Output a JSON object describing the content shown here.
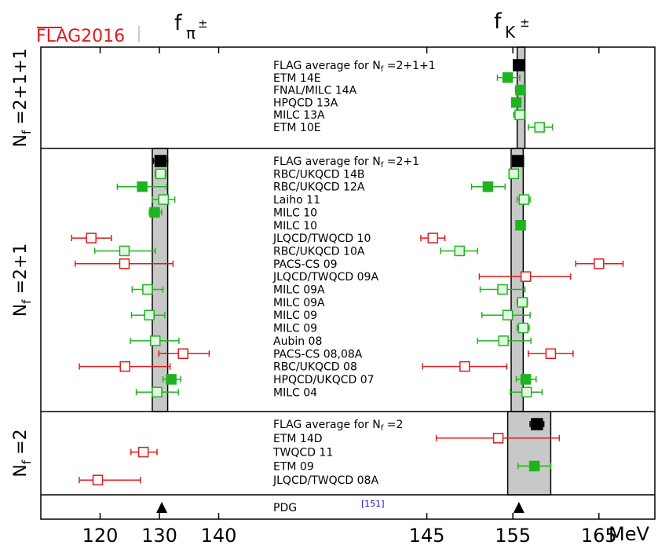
{
  "logo_text": "FLAG2016",
  "chart_data": {
    "type": "scatter",
    "unit": "MeV",
    "left_panel": {
      "quantity": "f_π±",
      "title_main": "f",
      "title_sub": "π",
      "title_sup": "±",
      "xlim": [
        110,
        150
      ],
      "ticks": [
        120,
        130,
        140
      ],
      "band": [
        128.8,
        131.4
      ]
    },
    "right_panel": {
      "quantity": "f_K±",
      "title_main": "f",
      "title_sub": "K",
      "title_sup": "±",
      "xlim": [
        135,
        171.5
      ],
      "ticks": [
        145,
        155,
        165
      ],
      "band_by_section": {
        "nf2111": [
          155.5,
          156.4
        ],
        "nf21": [
          154.8,
          156.2
        ],
        "nf2": [
          154.4,
          159.4
        ]
      }
    },
    "sections": [
      {
        "id": "nf2111",
        "label": "N_f = 2+1+1",
        "label_main": "N",
        "label_sub": "f",
        "label_rest": " =2+1+1",
        "entries": [
          {
            "name": "FLAG average for N_f = 2+1+1",
            "name_main": "FLAG average for N",
            "name_sub": "f",
            "name_rest": " =2+1+1",
            "pi": null,
            "k": {
              "v": 155.7,
              "lo": 155.4,
              "hi": 156.0,
              "style": "black"
            }
          },
          {
            "name": "ETM 14E",
            "pi": null,
            "k": {
              "v": 154.4,
              "lo": 153.2,
              "hi": 155.8,
              "style": "green-filled"
            }
          },
          {
            "name": "FNAL/MILC 14A",
            "pi": null,
            "k": {
              "v": 155.9,
              "lo": 155.3,
              "hi": 156.4,
              "style": "green-filled"
            }
          },
          {
            "name": "HPQCD 13A",
            "pi": null,
            "k": {
              "v": 155.4,
              "lo": 154.9,
              "hi": 155.9,
              "style": "green-filled"
            }
          },
          {
            "name": "MILC 13A",
            "pi": null,
            "k": {
              "v": 155.8,
              "lo": 155.1,
              "hi": 156.4,
              "style": "green-open"
            }
          },
          {
            "name": "ETM 10E",
            "pi": null,
            "k": {
              "v": 158.1,
              "lo": 156.8,
              "hi": 159.6,
              "style": "green-open"
            }
          }
        ]
      },
      {
        "id": "nf21",
        "label": "N_f = 2+1",
        "label_main": "N",
        "label_sub": "f",
        "label_rest": " =2+1",
        "entries": [
          {
            "name": "FLAG average for N_f = 2+1",
            "name_main": "FLAG average for N",
            "name_sub": "f",
            "name_rest": " =2+1",
            "pi": {
              "v": 130.2,
              "lo": 129.0,
              "hi": 131.4,
              "style": "black"
            },
            "k": {
              "v": 155.6,
              "lo": 155.2,
              "hi": 156.0,
              "style": "black"
            }
          },
          {
            "name": "RBC/UKQCD 14B",
            "pi": {
              "v": 130.2,
              "lo": 129.3,
              "hi": 131.1,
              "style": "green-open"
            },
            "k": {
              "v": 155.1,
              "lo": 154.6,
              "hi": 155.6,
              "style": "green-open"
            }
          },
          {
            "name": "RBC/UKQCD 12A",
            "pi": {
              "v": 127.1,
              "lo": 122.9,
              "hi": 131.2,
              "style": "green-filled"
            },
            "k": {
              "v": 152.1,
              "lo": 150.2,
              "hi": 154.1,
              "style": "green-filled"
            }
          },
          {
            "name": "Laiho 11",
            "pi": {
              "v": 130.7,
              "lo": 128.8,
              "hi": 132.6,
              "style": "green-open"
            },
            "k": {
              "v": 156.3,
              "lo": 155.5,
              "hi": 157.0,
              "style": "green-open"
            }
          },
          {
            "name": "MILC 10",
            "pi": {
              "v": 129.2,
              "lo": 128.3,
              "hi": 130.4,
              "style": "green-filled"
            },
            "k": null
          },
          {
            "name": "MILC 10",
            "pi": null,
            "k": {
              "v": 155.9,
              "lo": 155.4,
              "hi": 156.4,
              "style": "green-filled"
            }
          },
          {
            "name": "JLQCD/TWQCD 10",
            "pi": {
              "v": 118.5,
              "lo": 115.2,
              "hi": 121.9,
              "style": "red-open"
            },
            "k": {
              "v": 145.7,
              "lo": 144.3,
              "hi": 147.1,
              "style": "red-open"
            }
          },
          {
            "name": "RBC/UKQCD 10A",
            "pi": {
              "v": 124.1,
              "lo": 119.1,
              "hi": 129.3,
              "style": "green-open"
            },
            "k": {
              "v": 148.8,
              "lo": 146.6,
              "hi": 150.9,
              "style": "green-open"
            }
          },
          {
            "name": "PACS-CS 09",
            "pi": {
              "v": 124.1,
              "lo": 115.8,
              "hi": 132.3,
              "style": "red-open"
            },
            "k": {
              "v": 165.0,
              "lo": 162.3,
              "hi": 167.8,
              "style": "red-open"
            }
          },
          {
            "name": "JLQCD/TWQCD 09A",
            "pi": null,
            "k": {
              "v": 156.5,
              "lo": 151.1,
              "hi": 161.7,
              "style": "red-open"
            }
          },
          {
            "name": "MILC 09A",
            "pi": {
              "v": 128.0,
              "lo": 125.4,
              "hi": 130.6,
              "style": "green-open"
            },
            "k": {
              "v": 153.8,
              "lo": 151.2,
              "hi": 156.4,
              "style": "green-open"
            }
          },
          {
            "name": "MILC 09A",
            "pi": null,
            "k": {
              "v": 156.1,
              "lo": 155.5,
              "hi": 156.7,
              "style": "green-open"
            }
          },
          {
            "name": "MILC 09",
            "pi": {
              "v": 128.3,
              "lo": 125.3,
              "hi": 130.9,
              "style": "green-open"
            },
            "k": {
              "v": 154.4,
              "lo": 151.4,
              "hi": 157.0,
              "style": "green-open"
            }
          },
          {
            "name": "MILC 09",
            "pi": null,
            "k": {
              "v": 156.2,
              "lo": 155.5,
              "hi": 156.9,
              "style": "green-open"
            }
          },
          {
            "name": "Aubin 08",
            "pi": {
              "v": 129.3,
              "lo": 125.1,
              "hi": 133.3,
              "style": "green-open"
            },
            "k": {
              "v": 153.9,
              "lo": 150.9,
              "hi": 157.1,
              "style": "green-open"
            }
          },
          {
            "name": "PACS-CS 08,08A",
            "pi": {
              "v": 134.0,
              "lo": 129.9,
              "hi": 138.4,
              "style": "red-open"
            },
            "k": {
              "v": 159.4,
              "lo": 156.8,
              "hi": 162.0,
              "style": "red-open"
            }
          },
          {
            "name": "RBC/UKQCD 08",
            "pi": {
              "v": 124.2,
              "lo": 116.5,
              "hi": 131.8,
              "style": "red-open"
            },
            "k": {
              "v": 149.4,
              "lo": 144.5,
              "hi": 154.3,
              "style": "red-open"
            }
          },
          {
            "name": "HPQCD/UKQCD 07",
            "pi": {
              "v": 132.0,
              "lo": 130.6,
              "hi": 133.6,
              "style": "green-filled"
            },
            "k": {
              "v": 156.5,
              "lo": 155.4,
              "hi": 157.7,
              "style": "green-filled"
            }
          },
          {
            "name": "MILC 04",
            "pi": {
              "v": 129.6,
              "lo": 126.1,
              "hi": 133.2,
              "style": "green-open"
            },
            "k": {
              "v": 156.6,
              "lo": 154.7,
              "hi": 158.4,
              "style": "green-open"
            }
          }
        ]
      },
      {
        "id": "nf2",
        "label": "N_f = 2",
        "label_main": "N",
        "label_sub": "f",
        "label_rest": " =2",
        "entries": [
          {
            "name": "FLAG average for N_f = 2",
            "name_main": "FLAG average for N",
            "name_sub": "f",
            "name_rest": " =2",
            "pi": null,
            "k": {
              "v": 157.8,
              "lo": 157.0,
              "hi": 158.6,
              "style": "black"
            }
          },
          {
            "name": "ETM 14D",
            "pi": null,
            "k": {
              "v": 153.3,
              "lo": 146.1,
              "hi": 160.4,
              "style": "red-open"
            }
          },
          {
            "name": "TWQCD 11",
            "pi": {
              "v": 127.3,
              "lo": 125.2,
              "hi": 129.6,
              "style": "red-open"
            },
            "k": null
          },
          {
            "name": "ETM 09",
            "pi": null,
            "k": {
              "v": 157.5,
              "lo": 155.6,
              "hi": 159.4,
              "style": "green-filled"
            }
          },
          {
            "name": "JLQCD/TWQCD 08A",
            "pi": {
              "v": 119.6,
              "lo": 116.5,
              "hi": 126.8,
              "style": "red-open"
            },
            "k": null
          }
        ]
      },
      {
        "id": "pdg",
        "label": "",
        "entries": [
          {
            "name": "PDG",
            "ref": "[151]",
            "pi": {
              "v": 130.4,
              "style": "triangle"
            },
            "k": {
              "v": 155.7,
              "style": "triangle"
            }
          }
        ]
      }
    ]
  },
  "colors": {
    "black": "#000000",
    "green": "#1fb31f",
    "green_light": "#e2f8e2",
    "red": "#e21a1a",
    "band_gray": "#c8c8c8",
    "ref_blue": "#1010cc",
    "logo_red": "#e2171a"
  }
}
